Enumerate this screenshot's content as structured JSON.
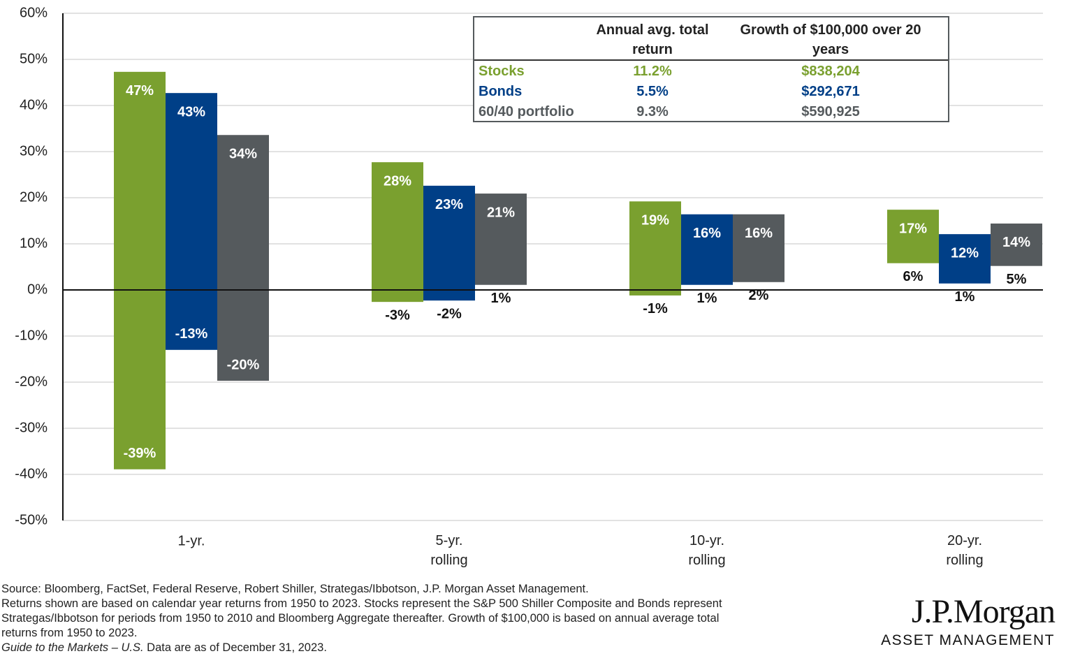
{
  "chart_data": {
    "type": "floating-bar",
    "categories": [
      "1-yr.",
      "5-yr. rolling",
      "10-yr. rolling",
      "20-yr. rolling"
    ],
    "ylim": [
      -50,
      60
    ],
    "yticks": [
      {
        "value": -50,
        "label": "-50%"
      },
      {
        "value": -40,
        "label": "-40%"
      },
      {
        "value": -30,
        "label": "-30%"
      },
      {
        "value": -20,
        "label": "-20%"
      },
      {
        "value": -10,
        "label": "-10%"
      },
      {
        "value": 0,
        "label": "0%"
      },
      {
        "value": 10,
        "label": "10%"
      },
      {
        "value": 20,
        "label": "20%"
      },
      {
        "value": 30,
        "label": "30%"
      },
      {
        "value": 40,
        "label": "40%"
      },
      {
        "value": 50,
        "label": "50%"
      },
      {
        "value": 60,
        "label": "60%"
      }
    ],
    "grid": true,
    "series": [
      {
        "name": "Stocks",
        "color": "#7aa02f",
        "high": [
          47.3,
          27.7,
          19.2,
          17.4
        ],
        "high_labels": [
          "47%",
          "28%",
          "19%",
          "17%"
        ],
        "low": [
          -38.9,
          -2.6,
          -1.2,
          5.8
        ],
        "low_labels": [
          "-39%",
          "-3%",
          "-1%",
          "6%"
        ],
        "annual_return": "11.2%",
        "growth": "$838,204"
      },
      {
        "name": "Bonds",
        "color": "#003f87",
        "high": [
          42.7,
          22.6,
          16.4,
          12.1
        ],
        "high_labels": [
          "43%",
          "23%",
          "16%",
          "12%"
        ],
        "low": [
          -13,
          -2.3,
          1.1,
          1.4
        ],
        "low_labels": [
          "-13%",
          "-2%",
          "1%",
          "1%"
        ],
        "annual_return": "5.5%",
        "growth": "$292,671"
      },
      {
        "name": "60/40 portfolio",
        "color": "#555a5d",
        "high": [
          33.6,
          20.9,
          16.4,
          14.4
        ],
        "high_labels": [
          "34%",
          "21%",
          "16%",
          "14%"
        ],
        "low": [
          -19.7,
          1.1,
          1.7,
          5.2
        ],
        "low_labels": [
          "-20%",
          "1%",
          "2%",
          "5%"
        ],
        "annual_return": "9.3%",
        "growth": "$590,925"
      }
    ],
    "table_headers": [
      "Annual avg. total return",
      "Growth of $100,000 over 20 years"
    ]
  },
  "notes": [
    "Source: Bloomberg, FactSet, Federal Reserve, Robert Shiller, Strategas/Ibbotson, J.P. Morgan Asset Management.",
    "Returns shown are based on calendar year returns from 1950 to 2023. Stocks represent the S&P 500 Shiller Composite and Bonds represent",
    "Strategas/Ibbotson for periods from 1950 to 2010 and Bloomberg Aggregate thereafter. Growth of $100,000 is based on annual average total",
    "returns from 1950 to 2023."
  ],
  "footnote_italic": "Guide to the Markets – U.S.",
  "footnote_rest": " Data are as of December 31, 2023.",
  "logo": {
    "name": "J.P.Morgan",
    "sub": "ASSET MANAGEMENT"
  }
}
